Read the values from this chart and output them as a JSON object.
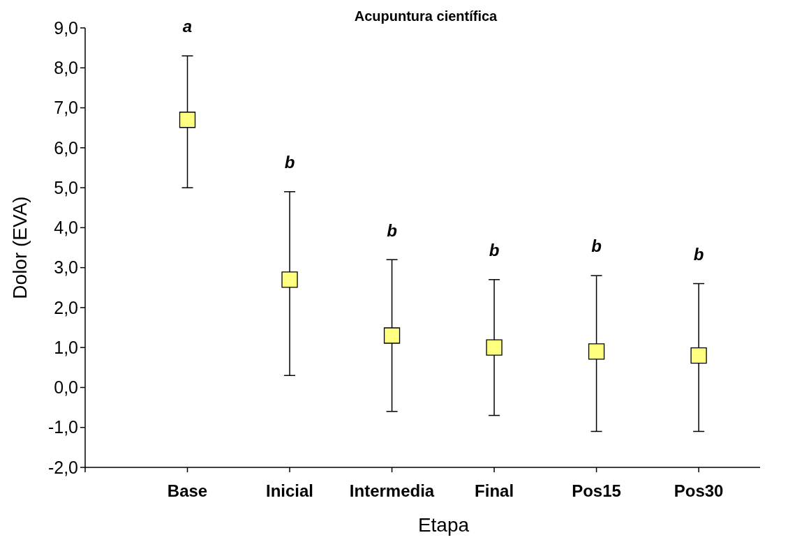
{
  "chart_data": {
    "type": "scatter",
    "title": "Acupuntura científica",
    "xlabel": "Etapa",
    "ylabel": "Dolor (EVA)",
    "categories": [
      "Base",
      "Inicial",
      "Intermedia",
      "Final",
      "Pos15",
      "Pos30"
    ],
    "values": [
      6.7,
      2.7,
      1.3,
      1.0,
      0.9,
      0.8
    ],
    "errors": [
      [
        5.0,
        8.3
      ],
      [
        0.3,
        4.9
      ],
      [
        -0.6,
        3.2
      ],
      [
        -0.7,
        2.7
      ],
      [
        -1.1,
        2.8
      ],
      [
        -1.1,
        2.6
      ]
    ],
    "color": "#ffff80",
    "marker": "square",
    "ylim": [
      -2,
      9
    ],
    "yticks": [
      {
        "value": -2,
        "label": "-2,0"
      },
      {
        "value": -1,
        "label": "-1,0"
      },
      {
        "value": 0,
        "label": "0,0"
      },
      {
        "value": 1,
        "label": "1,0"
      },
      {
        "value": 2,
        "label": "2,0"
      },
      {
        "value": 3,
        "label": "3,0"
      },
      {
        "value": 4,
        "label": "4,0"
      },
      {
        "value": 5,
        "label": "5,0"
      },
      {
        "value": 6,
        "label": "6,0"
      },
      {
        "value": 7,
        "label": "7,0"
      },
      {
        "value": 8,
        "label": "8,0"
      },
      {
        "value": 9,
        "label": "9,0"
      }
    ],
    "annotations": [
      "a",
      "b",
      "b",
      "b",
      "b",
      "b"
    ]
  }
}
